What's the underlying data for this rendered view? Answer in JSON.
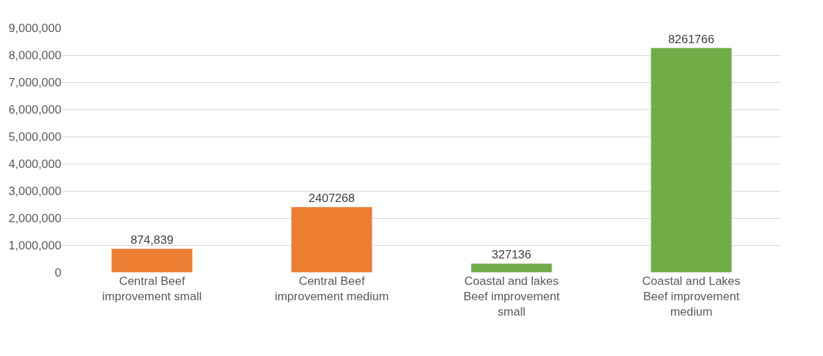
{
  "chart_data": {
    "type": "bar",
    "categories": [
      "Central Beef improvement small",
      "Central Beef improvement medium",
      "Coastal and lakes Beef improvement small",
      "Coastal and Lakes Beef improvement medium"
    ],
    "values": [
      874839,
      2407268,
      327136,
      8261766
    ],
    "value_labels": [
      "874,839",
      "2407268",
      "327136",
      "8261766"
    ],
    "colors": [
      "#ed7d31",
      "#ed7d31",
      "#70ad47",
      "#70ad47"
    ],
    "ylim": [
      0,
      9000000
    ],
    "yticks": [
      0,
      {
        "value": 1000000,
        "label": "1,000,000"
      },
      {
        "value": 2000000,
        "label": "2,000,000"
      },
      {
        "value": 3000000,
        "label": "3,000,000"
      },
      {
        "value": 4000000,
        "label": "4,000,000"
      },
      {
        "value": 5000000,
        "label": "5,000,000"
      },
      {
        "value": 6000000,
        "label": "6,000,000"
      },
      {
        "value": 7000000,
        "label": "7,000,000"
      },
      {
        "value": 8000000,
        "label": "8,000,000"
      },
      {
        "value": 9000000,
        "label": "9,000,000"
      }
    ],
    "grid": "y"
  }
}
